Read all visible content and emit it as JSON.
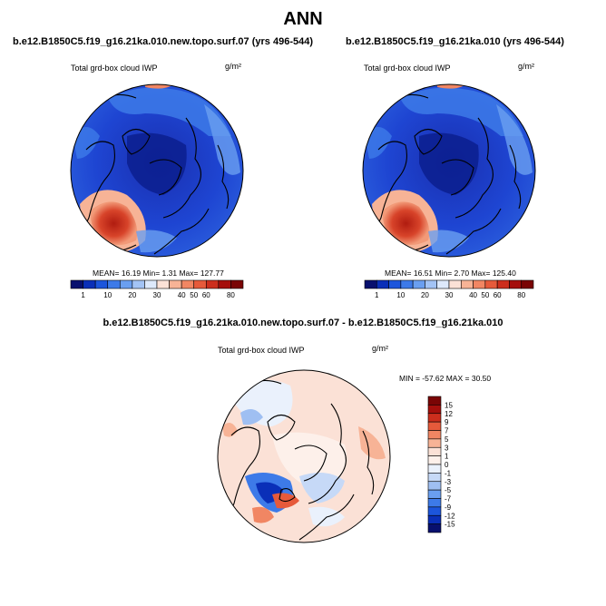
{
  "title": "ANN",
  "panels": {
    "left": {
      "case": "b.e12.B1850C5.f19_g16.21ka.010.new.topo.surf.07 (yrs 496-544)",
      "variable": "Total grd-box cloud IWP",
      "units": "g/m²",
      "stats": "MEAN= 16.19 Min= 1.31 Max= 127.77"
    },
    "right": {
      "case": "b.e12.B1850C5.f19_g16.21ka.010 (yrs 496-544)",
      "variable": "Total grd-box cloud IWP",
      "units": "g/m²",
      "stats": "MEAN= 16.51 Min= 2.70 Max= 125.40"
    },
    "diff": {
      "case": "b.e12.B1850C5.f19_g16.21ka.010.new.topo.surf.07 - b.e12.B1850C5.f19_g16.21ka.010",
      "variable": "Total grd-box cloud IWP",
      "units": "g/m²",
      "stats": "MIN = -57.62 MAX = 30.50"
    }
  },
  "chart_data": {
    "type": "heatmap",
    "projection": "north-polar stereographic",
    "field_colorbar": {
      "orientation": "horizontal",
      "labels": [
        "1",
        "10",
        "20",
        "30",
        "40",
        "50",
        "60",
        "80"
      ],
      "colors": [
        "#08106e",
        "#0a2fb8",
        "#1c55dc",
        "#3d7ae8",
        "#6a9ff0",
        "#a3c4f5",
        "#dde9fb",
        "#fbe1d6",
        "#f7b396",
        "#f18663",
        "#e65a3b",
        "#cc2e1d",
        "#a50f0c",
        "#7a0505"
      ]
    },
    "diff_colorbar": {
      "orientation": "vertical",
      "labels": [
        "15",
        "12",
        "9",
        "7",
        "5",
        "3",
        "1",
        "0",
        "-1",
        "-3",
        "-5",
        "-7",
        "-9",
        "-12",
        "-15"
      ],
      "colors": [
        "#7a0505",
        "#a50f0c",
        "#cc2e1d",
        "#e65a3b",
        "#f18663",
        "#f7b396",
        "#fbe1d6",
        "#fdf0ea",
        "#eaf1fc",
        "#c6d9f7",
        "#9fbff2",
        "#6a9ff0",
        "#3d7ae8",
        "#1c55dc",
        "#0a2fb8",
        "#08106e"
      ]
    }
  }
}
